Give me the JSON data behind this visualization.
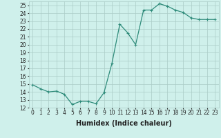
{
  "x": [
    0,
    1,
    2,
    3,
    4,
    5,
    6,
    7,
    8,
    9,
    10,
    11,
    12,
    13,
    14,
    15,
    16,
    17,
    18,
    19,
    20,
    21,
    22,
    23
  ],
  "y": [
    14.9,
    14.4,
    14.0,
    14.1,
    13.7,
    12.4,
    12.8,
    12.8,
    12.5,
    13.9,
    17.6,
    22.6,
    21.5,
    20.0,
    24.4,
    24.4,
    25.2,
    24.9,
    24.4,
    24.1,
    23.4,
    23.2,
    23.2,
    23.2
  ],
  "line_color": "#2e8b7a",
  "marker": "+",
  "marker_size": 3.5,
  "linewidth": 0.9,
  "xlabel": "Humidex (Indice chaleur)",
  "xlabel_fontsize": 7,
  "bg_color": "#cff0eb",
  "grid_color": "#aaccc6",
  "tick_color": "#222222",
  "ylim": [
    12,
    25.5
  ],
  "xlim": [
    -0.5,
    23.5
  ],
  "yticks": [
    12,
    13,
    14,
    15,
    16,
    17,
    18,
    19,
    20,
    21,
    22,
    23,
    24,
    25
  ],
  "xticks": [
    0,
    1,
    2,
    3,
    4,
    5,
    6,
    7,
    8,
    9,
    10,
    11,
    12,
    13,
    14,
    15,
    16,
    17,
    18,
    19,
    20,
    21,
    22,
    23
  ],
  "tick_fontsize": 5.5
}
